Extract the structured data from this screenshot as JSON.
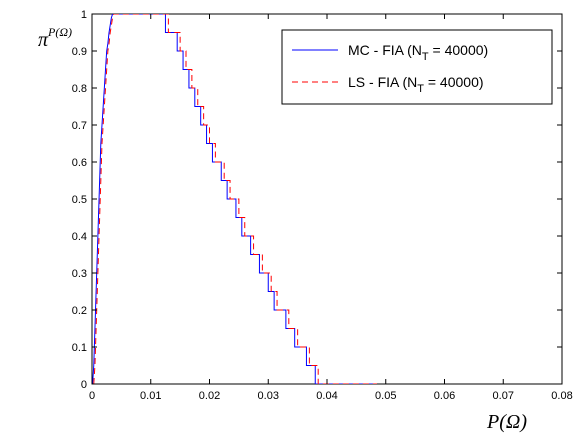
{
  "chart_data": {
    "type": "line",
    "xlim": [
      0,
      0.08
    ],
    "ylim": [
      0,
      1
    ],
    "x_ticks": [
      "0",
      "0.01",
      "0.02",
      "0.03",
      "0.04",
      "0.05",
      "0.06",
      "0.07",
      "0.08"
    ],
    "y_ticks": [
      "0",
      "0.1",
      "0.2",
      "0.3",
      "0.4",
      "0.5",
      "0.6",
      "0.7",
      "0.8",
      "0.9",
      "1"
    ],
    "x_tick_values": [
      0,
      0.01,
      0.02,
      0.03,
      0.04,
      0.05,
      0.06,
      0.07,
      0.08
    ],
    "y_tick_values": [
      0,
      0.1,
      0.2,
      0.3,
      0.4,
      0.5,
      0.6,
      0.7,
      0.8,
      0.9,
      1.0
    ],
    "xlabel": "P(Ω)",
    "ylabel_base": "π",
    "ylabel_sup": "P(Ω)",
    "grid": false,
    "legend_position": "top-right",
    "series": [
      {
        "name_prefix": "MC - FIA (N",
        "name_sub": "T",
        "name_suffix": " = 40000)",
        "color": "#0000ff",
        "style": "solid",
        "x": [
          0.0001,
          0.0003,
          0.0005,
          0.0007,
          0.0009,
          0.0011,
          0.0013,
          0.0015,
          0.0017,
          0.0019,
          0.0021,
          0.0023,
          0.0025,
          0.0027,
          0.0029,
          0.0031,
          0.0033,
          0.0035,
          0.0125,
          0.0125,
          0.0145,
          0.0145,
          0.0155,
          0.0155,
          0.0165,
          0.0165,
          0.0175,
          0.0175,
          0.0185,
          0.0185,
          0.0195,
          0.0195,
          0.0205,
          0.0205,
          0.022,
          0.022,
          0.023,
          0.023,
          0.0245,
          0.0245,
          0.0255,
          0.0255,
          0.027,
          0.027,
          0.0285,
          0.0285,
          0.03,
          0.03,
          0.031,
          0.031,
          0.033,
          0.033,
          0.0345,
          0.0345,
          0.0365,
          0.0365,
          0.038,
          0.038,
          0.0405,
          0.0405,
          0.0425,
          0.0425,
          0.044,
          0.044,
          0.046,
          0.046,
          0.048,
          0.048
        ],
        "y": [
          0.0,
          0.05,
          0.15,
          0.25,
          0.35,
          0.45,
          0.55,
          0.65,
          0.7,
          0.75,
          0.8,
          0.85,
          0.9,
          0.92,
          0.95,
          0.97,
          0.99,
          1.0,
          1.0,
          0.95,
          0.95,
          0.9,
          0.9,
          0.85,
          0.85,
          0.8,
          0.8,
          0.75,
          0.75,
          0.7,
          0.7,
          0.65,
          0.65,
          0.6,
          0.6,
          0.55,
          0.55,
          0.5,
          0.5,
          0.45,
          0.45,
          0.4,
          0.4,
          0.35,
          0.35,
          0.3,
          0.3,
          0.25,
          0.25,
          0.2,
          0.2,
          0.15,
          0.15,
          0.1,
          0.1,
          0.05,
          0.05,
          0.0,
          0.0,
          0.0,
          0.0,
          0.0,
          0.0,
          0.0,
          0.0,
          0.0,
          0.0,
          0.0
        ]
      },
      {
        "name_prefix": "LS - FIA (N",
        "name_sub": "T",
        "name_suffix": " = 40000)",
        "color": "#ff0000",
        "style": "dashed",
        "x": [
          0.0003,
          0.0005,
          0.0007,
          0.0009,
          0.0011,
          0.0013,
          0.0015,
          0.0017,
          0.0019,
          0.0021,
          0.0023,
          0.0025,
          0.0027,
          0.0029,
          0.0031,
          0.0033,
          0.0035,
          0.0037,
          0.013,
          0.013,
          0.015,
          0.015,
          0.016,
          0.016,
          0.017,
          0.017,
          0.018,
          0.018,
          0.019,
          0.019,
          0.02,
          0.02,
          0.021,
          0.021,
          0.0225,
          0.0225,
          0.0235,
          0.0235,
          0.025,
          0.025,
          0.026,
          0.026,
          0.0275,
          0.0275,
          0.029,
          0.029,
          0.0305,
          0.0305,
          0.0315,
          0.0315,
          0.0335,
          0.0335,
          0.035,
          0.035,
          0.037,
          0.037,
          0.0385,
          0.0385,
          0.041,
          0.041,
          0.043,
          0.043,
          0.0445,
          0.0445,
          0.0465,
          0.0465,
          0.0485,
          0.0485
        ],
        "y": [
          0.0,
          0.05,
          0.15,
          0.25,
          0.35,
          0.45,
          0.55,
          0.65,
          0.7,
          0.75,
          0.8,
          0.85,
          0.9,
          0.92,
          0.95,
          0.97,
          0.99,
          1.0,
          1.0,
          0.95,
          0.95,
          0.9,
          0.9,
          0.85,
          0.85,
          0.8,
          0.8,
          0.75,
          0.75,
          0.7,
          0.7,
          0.65,
          0.65,
          0.6,
          0.6,
          0.55,
          0.55,
          0.5,
          0.5,
          0.45,
          0.45,
          0.4,
          0.4,
          0.35,
          0.35,
          0.3,
          0.3,
          0.25,
          0.25,
          0.2,
          0.2,
          0.15,
          0.15,
          0.1,
          0.1,
          0.05,
          0.05,
          0.0,
          0.0,
          0.0,
          0.0,
          0.0,
          0.0,
          0.0,
          0.0,
          0.0,
          0.0,
          0.0
        ]
      }
    ]
  }
}
